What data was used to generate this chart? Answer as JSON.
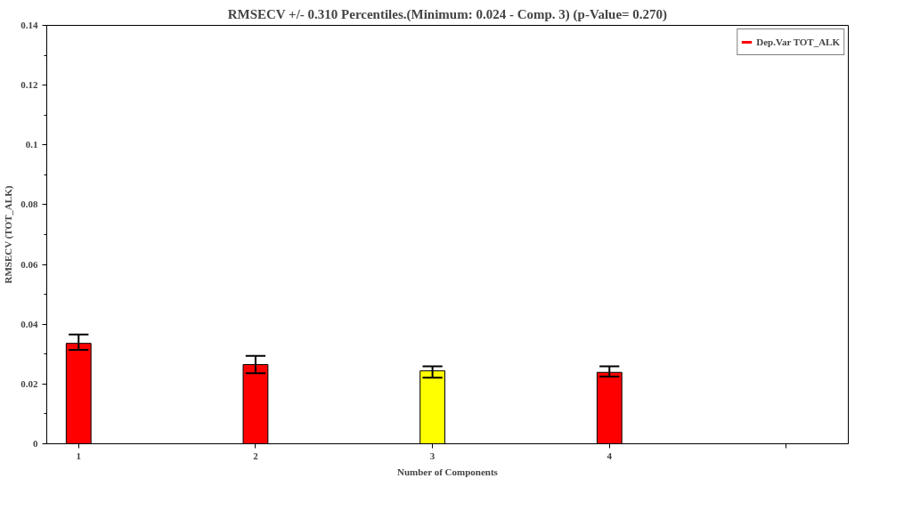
{
  "chart_data": {
    "type": "bar",
    "title": "RMSECV +/- 0.310 Percentiles.(Minimum: 0.024 - Comp. 3) (p-Value= 0.270)",
    "xlabel": "Number of Components",
    "ylabel": "RMSECV (TOT_ALK)",
    "x": [
      1,
      2,
      3,
      4
    ],
    "series": [
      {
        "name": "Dep.Var TOT_ALK",
        "color": "#ff0000",
        "colors": [
          "#ff0000",
          "#ff0000",
          "#ffff00",
          "#ff0000"
        ],
        "values": [
          0.0336,
          0.0265,
          0.0244,
          0.0239
        ],
        "errors": [
          [
            0.0314,
            0.0366
          ],
          [
            0.0236,
            0.0294
          ],
          [
            0.0221,
            0.0259
          ],
          [
            0.0225,
            0.0259
          ]
        ]
      }
    ],
    "xlim": [
      0.82,
      5.35
    ],
    "xticks": [
      1,
      2,
      3,
      4,
      {
        "value": 5,
        "label": null
      }
    ],
    "ylim": [
      0,
      0.14
    ],
    "yticks": [
      {
        "value": 0,
        "label": "0"
      },
      0.02,
      0.04,
      0.06,
      0.08,
      {
        "value": 0.1,
        "label": "0.1"
      },
      0.12,
      0.14
    ],
    "grid": false,
    "legend": "top right"
  }
}
